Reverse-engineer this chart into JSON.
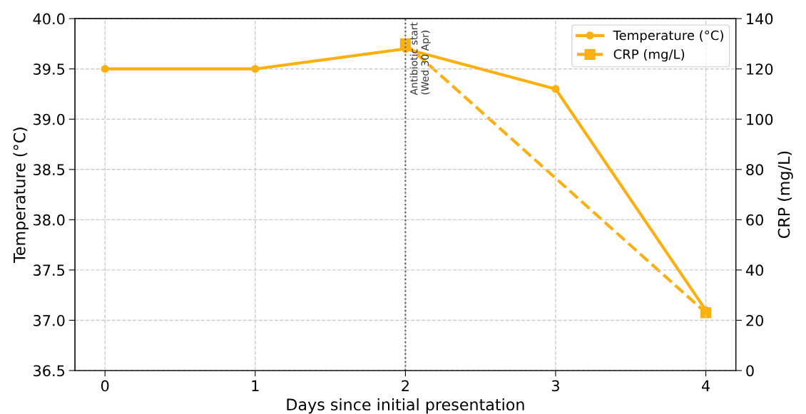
{
  "chart_data": {
    "type": "line",
    "xlabel": "Days since initial presentation",
    "ylabel": "Temperature (°C)",
    "y2label": "CRP (mg/L)",
    "x": [
      0,
      1,
      2,
      3,
      4
    ],
    "series": [
      {
        "name": "Temperature (°C)",
        "color": "#fbb012",
        "values": [
          39.5,
          39.5,
          39.7,
          39.3,
          37.1
        ],
        "marker": "circle",
        "line_style": "solid"
      },
      {
        "name": "CRP (mg/L)",
        "color": "#fbb012",
        "x": [
          2,
          4
        ],
        "values": [
          130,
          23
        ],
        "axis": "y2",
        "marker": "square",
        "line_style": "dashed"
      }
    ],
    "xlim": [
      -0.2,
      4.2
    ],
    "xticks": [
      0,
      1,
      2,
      3,
      4
    ],
    "ylim": [
      36.5,
      40.0
    ],
    "yticks": [
      {
        "value": 36.5,
        "label": "36.5"
      },
      {
        "value": 37.0,
        "label": "37.0"
      },
      {
        "value": 37.5,
        "label": "37.5"
      },
      {
        "value": 38.0,
        "label": "38.0"
      },
      {
        "value": 38.5,
        "label": "38.5"
      },
      {
        "value": 39.0,
        "label": "39.0"
      },
      {
        "value": 39.5,
        "label": "39.5"
      },
      {
        "value": 40.0,
        "label": "40.0"
      }
    ],
    "y2lim": [
      0,
      140
    ],
    "y2ticks": [
      0,
      20,
      40,
      60,
      80,
      100,
      120,
      140
    ],
    "ref_lines": [
      {
        "axis": "x",
        "value": 2,
        "label": "Antibiotic start\n(Wed 30 Apr)",
        "color": "#555555",
        "line_style": "dotted"
      }
    ],
    "grid": true,
    "legend": "top right"
  }
}
